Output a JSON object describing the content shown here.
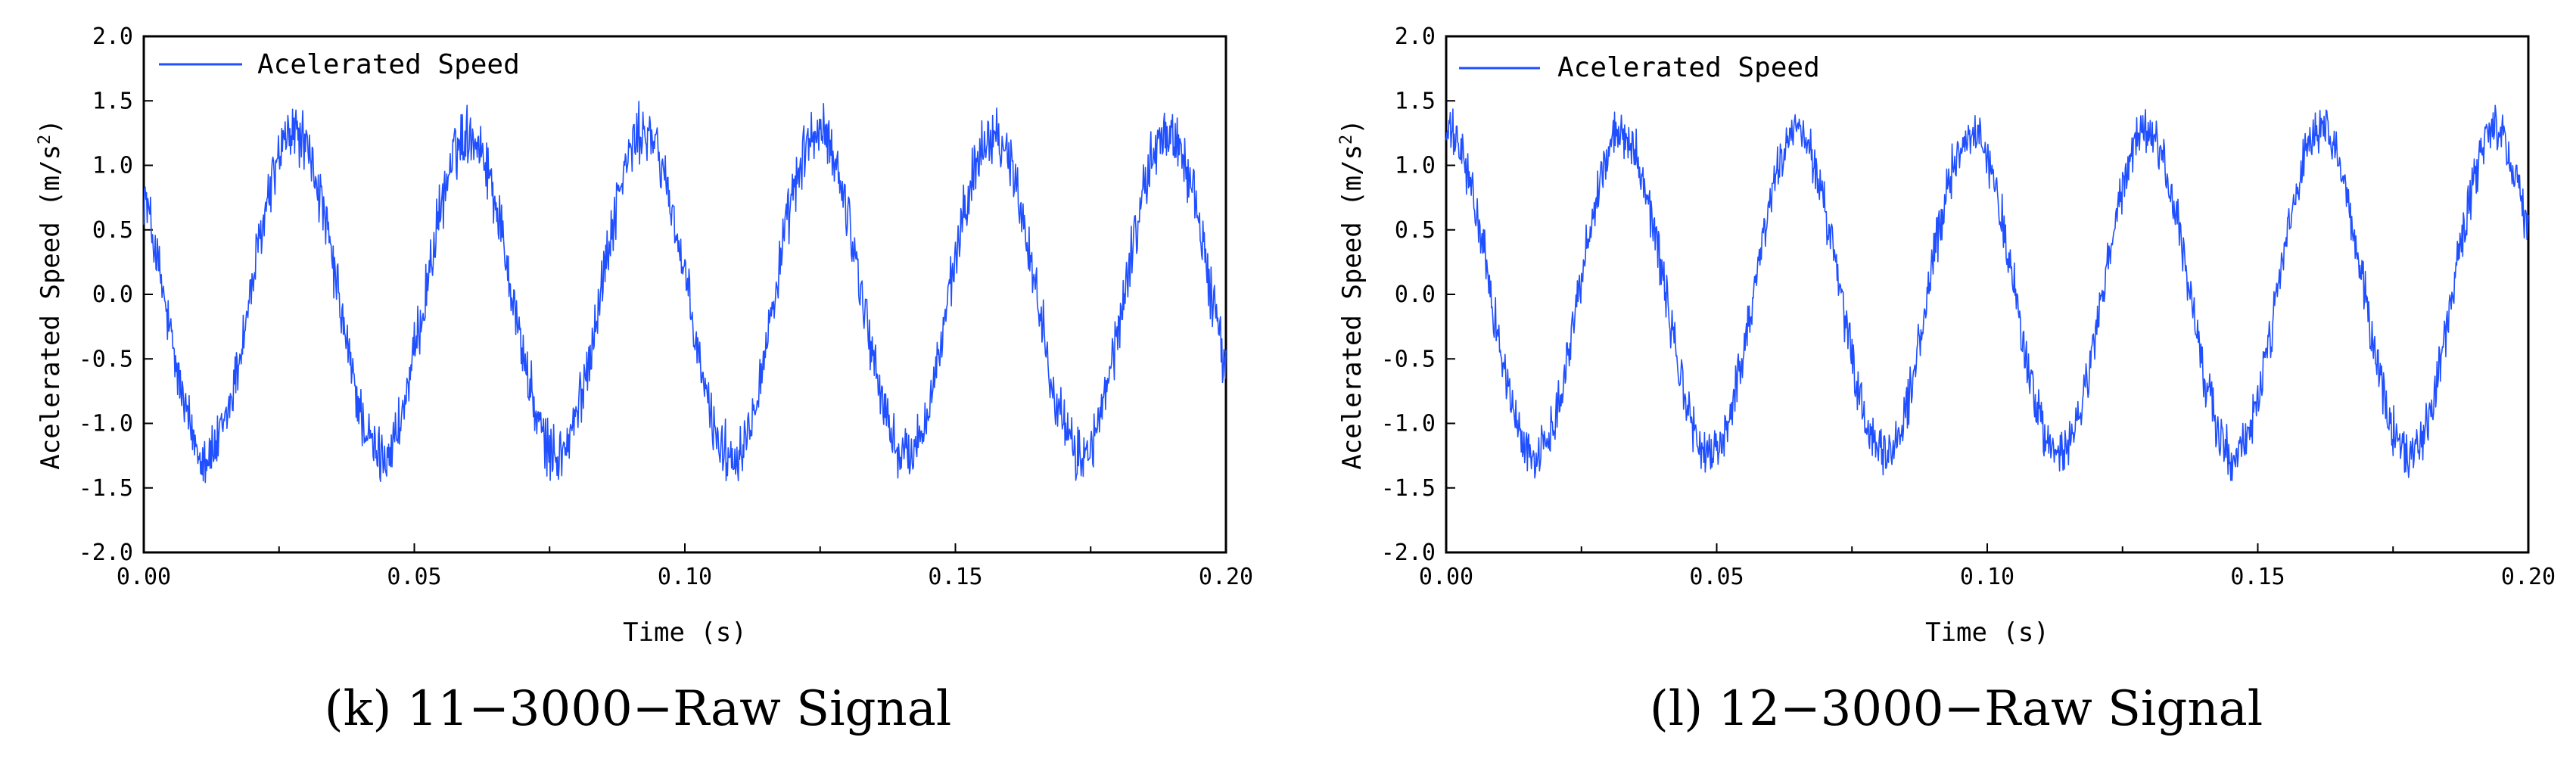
{
  "colors": {
    "series": "#1f4fff",
    "axis": "#000000",
    "background": "#ffffff"
  },
  "chart_data": [
    {
      "type": "line",
      "caption": "(k) 11−3000−Raw Signal",
      "xlabel": "Time (s)",
      "ylabel": "Acelerated Speed (m/s",
      "ylabel_sup": "2",
      "ylabel_close": ")",
      "xlim": [
        0.0,
        0.2
      ],
      "ylim": [
        -2.0,
        2.0
      ],
      "xticks": [
        "0.00",
        "0.05",
        "0.10",
        "0.15",
        "0.20"
      ],
      "yticks": [
        "2.0",
        "1.5",
        "1.0",
        "0.5",
        "0.0",
        "-0.5",
        "-1.0",
        "-1.5",
        "-2.0"
      ],
      "legend": {
        "label": "Acelerated Speed",
        "location": "top-left"
      },
      "series": [
        {
          "name": "Acelerated Speed",
          "signal": "sine",
          "amplitude": 1.25,
          "period_s": 0.0323,
          "phase_offset_s": -0.0045,
          "noise_amplitude": 0.18,
          "sample_count": 1600
        }
      ]
    },
    {
      "type": "line",
      "caption": "(l) 12−3000−Raw Signal",
      "xlabel": "Time (s)",
      "ylabel": "Acelerated Speed (m/s",
      "ylabel_sup": "2",
      "ylabel_close": ")",
      "xlim": [
        0.0,
        0.2
      ],
      "ylim": [
        -2.0,
        2.0
      ],
      "xticks": [
        "0.00",
        "0.05",
        "0.10",
        "0.15",
        "0.20"
      ],
      "yticks": [
        "2.0",
        "1.5",
        "1.0",
        "0.5",
        "0.0",
        "-0.5",
        "-1.0",
        "-1.5",
        "-2.0"
      ],
      "legend": {
        "label": "Acelerated Speed",
        "location": "top-left"
      },
      "series": [
        {
          "name": "Acelerated Speed",
          "signal": "sine",
          "amplitude": 1.25,
          "period_s": 0.0323,
          "phase_offset_s": 0.0002,
          "noise_amplitude": 0.15,
          "sample_count": 1600
        }
      ]
    }
  ]
}
